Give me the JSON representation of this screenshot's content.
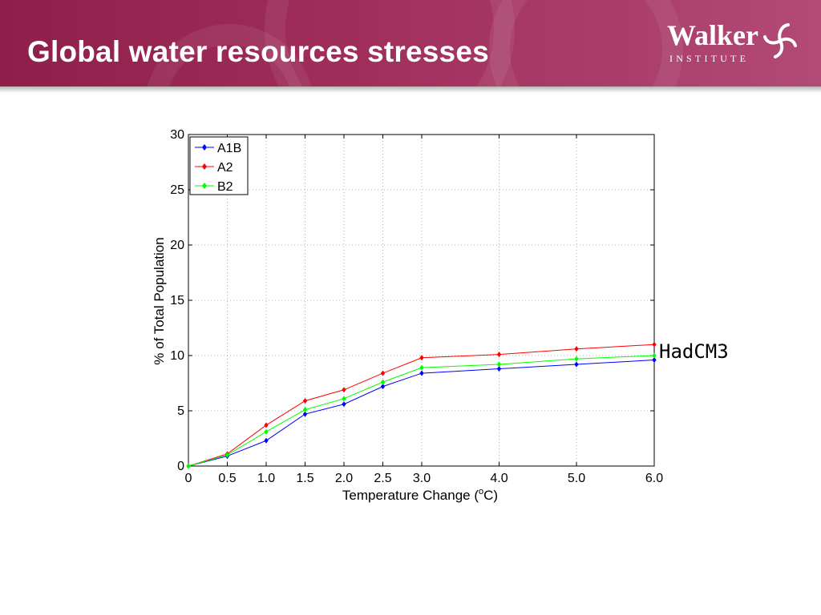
{
  "header": {
    "title": "Global water resources stresses",
    "logo_name": "Walker",
    "logo_sub": "INSTITUTE"
  },
  "side_label": "HadCM3",
  "colors": {
    "A1B": "#0000ff",
    "A2": "#ff0000",
    "B2": "#00ff00",
    "banner": "#9a2a57"
  },
  "chart_data": {
    "type": "line",
    "title": "",
    "xlabel": "Temperature Change (oC)",
    "xlabel_main": "Temperature Change (",
    "xlabel_sup": "o",
    "xlabel_end": "C)",
    "ylabel": "% of Total Population",
    "x": [
      0,
      0.5,
      1.0,
      1.5,
      2.0,
      2.5,
      3.0,
      4.0,
      5.0,
      6.0
    ],
    "x_tick_labels": [
      "0",
      "0.5",
      "1.0",
      "1.5",
      "2.0",
      "2.5",
      "3.0",
      "4.0",
      "5.0",
      "6.0"
    ],
    "y_ticks": [
      0,
      5,
      10,
      15,
      20,
      25,
      30
    ],
    "ylim": [
      0,
      30
    ],
    "grid": true,
    "legend_position": "top-left",
    "series": [
      {
        "name": "A1B",
        "color": "#0000ff",
        "values": [
          0,
          0.9,
          2.3,
          4.7,
          5.6,
          7.2,
          8.4,
          8.8,
          9.2,
          9.6
        ]
      },
      {
        "name": "A2",
        "color": "#ff0000",
        "values": [
          0,
          1.1,
          3.7,
          5.9,
          6.9,
          8.4,
          9.8,
          10.1,
          10.6,
          11.0
        ]
      },
      {
        "name": "B2",
        "color": "#00ff00",
        "values": [
          0,
          1.0,
          3.1,
          5.1,
          6.1,
          7.6,
          8.9,
          9.2,
          9.7,
          10.0
        ]
      }
    ]
  }
}
